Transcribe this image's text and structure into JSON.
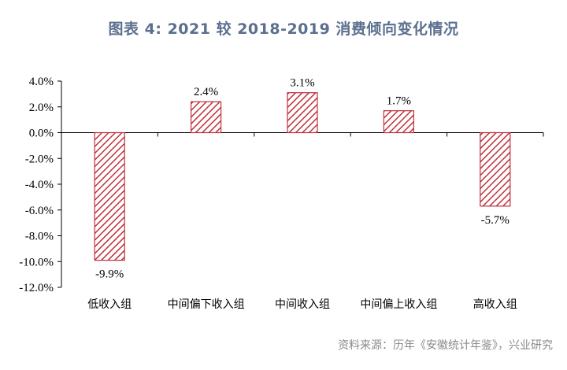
{
  "header": {
    "title": "图表 4:   2021 较 2018-2019 消费倾向变化情况"
  },
  "footer": {
    "source": "资料来源：历年《安徽统计年鉴》，兴业研究"
  },
  "colors": {
    "bar_stroke": "#c0303c",
    "bar_hatch": "#c0303c",
    "axis": "#000000",
    "title": "#5b6f8f",
    "source": "#8a8a8a"
  },
  "chart_data": {
    "type": "bar",
    "title": "",
    "xlabel": "",
    "ylabel": "",
    "categories": [
      "低收入组",
      "中间偏下收入组",
      "中间收入组",
      "中间偏上收入组",
      "高收入组"
    ],
    "values": [
      -9.9,
      2.4,
      3.1,
      1.7,
      -5.7
    ],
    "data_labels": [
      "-9.9%",
      "2.4%",
      "3.1%",
      "1.7%",
      "-5.7%"
    ],
    "ylim": [
      -12.0,
      4.0
    ],
    "yticks": [
      4.0,
      2.0,
      0.0,
      -2.0,
      -4.0,
      -6.0,
      -8.0,
      -10.0,
      -12.0
    ],
    "ytick_labels": [
      "4.0%",
      "2.0%",
      "0.0%",
      "-2.0%",
      "-4.0%",
      "-6.0%",
      "-8.0%",
      "-10.0%",
      "-12.0%"
    ],
    "grid": false,
    "legend": "none",
    "pattern": "diagonal-hatch"
  }
}
